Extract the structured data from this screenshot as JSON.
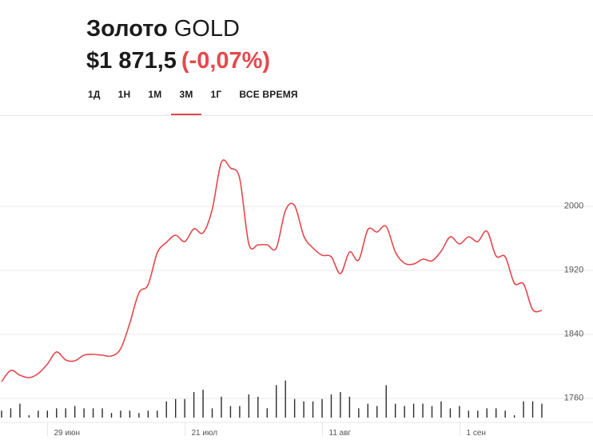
{
  "header": {
    "name": "Золото",
    "ticker": "GOLD",
    "price": "$1 871,5",
    "change": "(-0,07%)"
  },
  "tabs": [
    {
      "label": "1Д",
      "active": false
    },
    {
      "label": "1Н",
      "active": false
    },
    {
      "label": "1М",
      "active": false
    },
    {
      "label": "3М",
      "active": true
    },
    {
      "label": "1Г",
      "active": false
    },
    {
      "label": "ВСЕ ВРЕМЯ",
      "active": false
    }
  ],
  "colors": {
    "line": "#e5484d",
    "change_negative": "#e5484d",
    "volume": "#2b2b2b",
    "grid": "#e7e7e7",
    "axis_text": "#555555"
  },
  "chart_data": {
    "type": "line",
    "title": "",
    "xlabel": "",
    "ylabel": "",
    "ylim": [
      1713,
      2113
    ],
    "yticks": [
      1760,
      1840,
      1920,
      2000
    ],
    "ytick_labels": [
      "1760",
      "1840",
      "1920",
      "2000"
    ],
    "xtick_labels": [
      {
        "label": "29 июн",
        "index": 5
      },
      {
        "label": "21 июл",
        "index": 20
      },
      {
        "label": "11 авг",
        "index": 35
      },
      {
        "label": "1 сен",
        "index": 50
      }
    ],
    "grid": true,
    "series": [
      {
        "values": [
          1781,
          1795,
          1789,
          1786,
          1791,
          1803,
          1818,
          1808,
          1807,
          1814,
          1815,
          1814,
          1813,
          1822,
          1854,
          1892,
          1902,
          1942,
          1955,
          1964,
          1956,
          1972,
          1967,
          1996,
          2055,
          2048,
          2035,
          1953,
          1952,
          1952,
          1948,
          1995,
          2001,
          1963,
          1948,
          1939,
          1937,
          1916,
          1943,
          1933,
          1971,
          1968,
          1975,
          1943,
          1929,
          1928,
          1934,
          1932,
          1944,
          1962,
          1953,
          1962,
          1956,
          1969,
          1938,
          1937,
          1904,
          1903,
          1871,
          1870
        ]
      }
    ],
    "volume": [
      3,
      4,
      6,
      1,
      3,
      3,
      4,
      4,
      5,
      4,
      4,
      4,
      2,
      3,
      3,
      2,
      3,
      3,
      7,
      8,
      8,
      11,
      12,
      4,
      9,
      5,
      5,
      10,
      9,
      4,
      14,
      16,
      8,
      7,
      7,
      8,
      10,
      11,
      9,
      4,
      6,
      5,
      14,
      6,
      5,
      6,
      6,
      5,
      7,
      4,
      5,
      3,
      3,
      4,
      4,
      3,
      1,
      7,
      7,
      6
    ]
  }
}
